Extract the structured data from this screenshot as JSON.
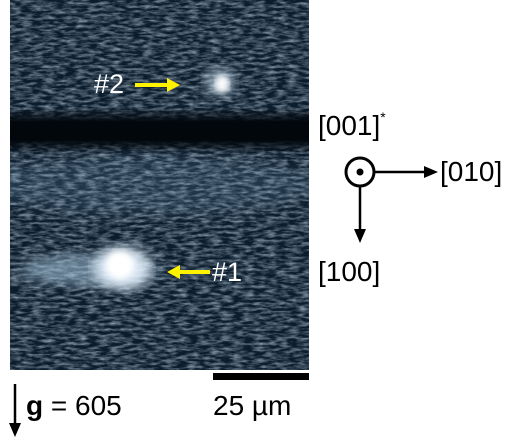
{
  "micrograph": {
    "labels": {
      "defect_2": "#2",
      "defect_1": "#1"
    },
    "arrow_color": "#FFF200",
    "background_color": "#0B1C2C",
    "band_color": "#02070C"
  },
  "axes": {
    "out_of_plane": "[001]",
    "out_of_plane_mark": "*",
    "horizontal": "[010]",
    "vertical": "[100]"
  },
  "g_vector": {
    "symbol": "g",
    "equals": " = ",
    "value": "605"
  },
  "scale_bar": {
    "label": "25 µm"
  }
}
